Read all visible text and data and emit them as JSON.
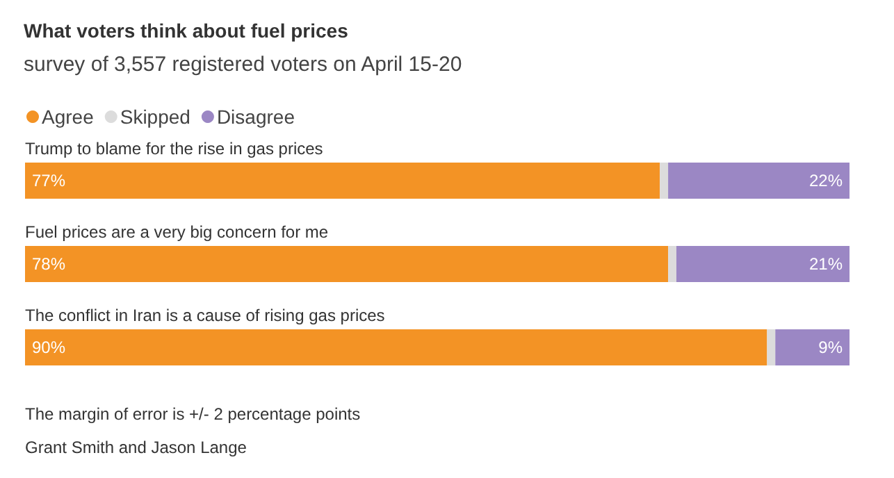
{
  "chart_data": {
    "type": "bar",
    "orientation": "horizontal",
    "stacked": true,
    "legend": "top left",
    "title": "What voters think about fuel prices",
    "subtitle": "survey of 3,557 registered voters on April 15-20",
    "categories": [
      "Trump to blame for the rise in gas prices",
      "Fuel prices are a very big concern for me",
      "The conflict in Iran is a cause of rising gas prices"
    ],
    "series": [
      {
        "name": "Agree",
        "color": "#f39325",
        "values": [
          77,
          78,
          90
        ],
        "value_labels": [
          "77%",
          "78%",
          "90%"
        ]
      },
      {
        "name": "Skipped",
        "color": "#dcdcdc",
        "values": [
          1,
          1,
          1
        ]
      },
      {
        "name": "Disagree",
        "color": "#9b87c4",
        "values": [
          22,
          21,
          9
        ],
        "value_labels": [
          "22%",
          "21%",
          "9%"
        ]
      }
    ],
    "annotations": [
      "The margin of error is +/- 2 percentage points",
      "Grant Smith and Jason Lange"
    ]
  }
}
